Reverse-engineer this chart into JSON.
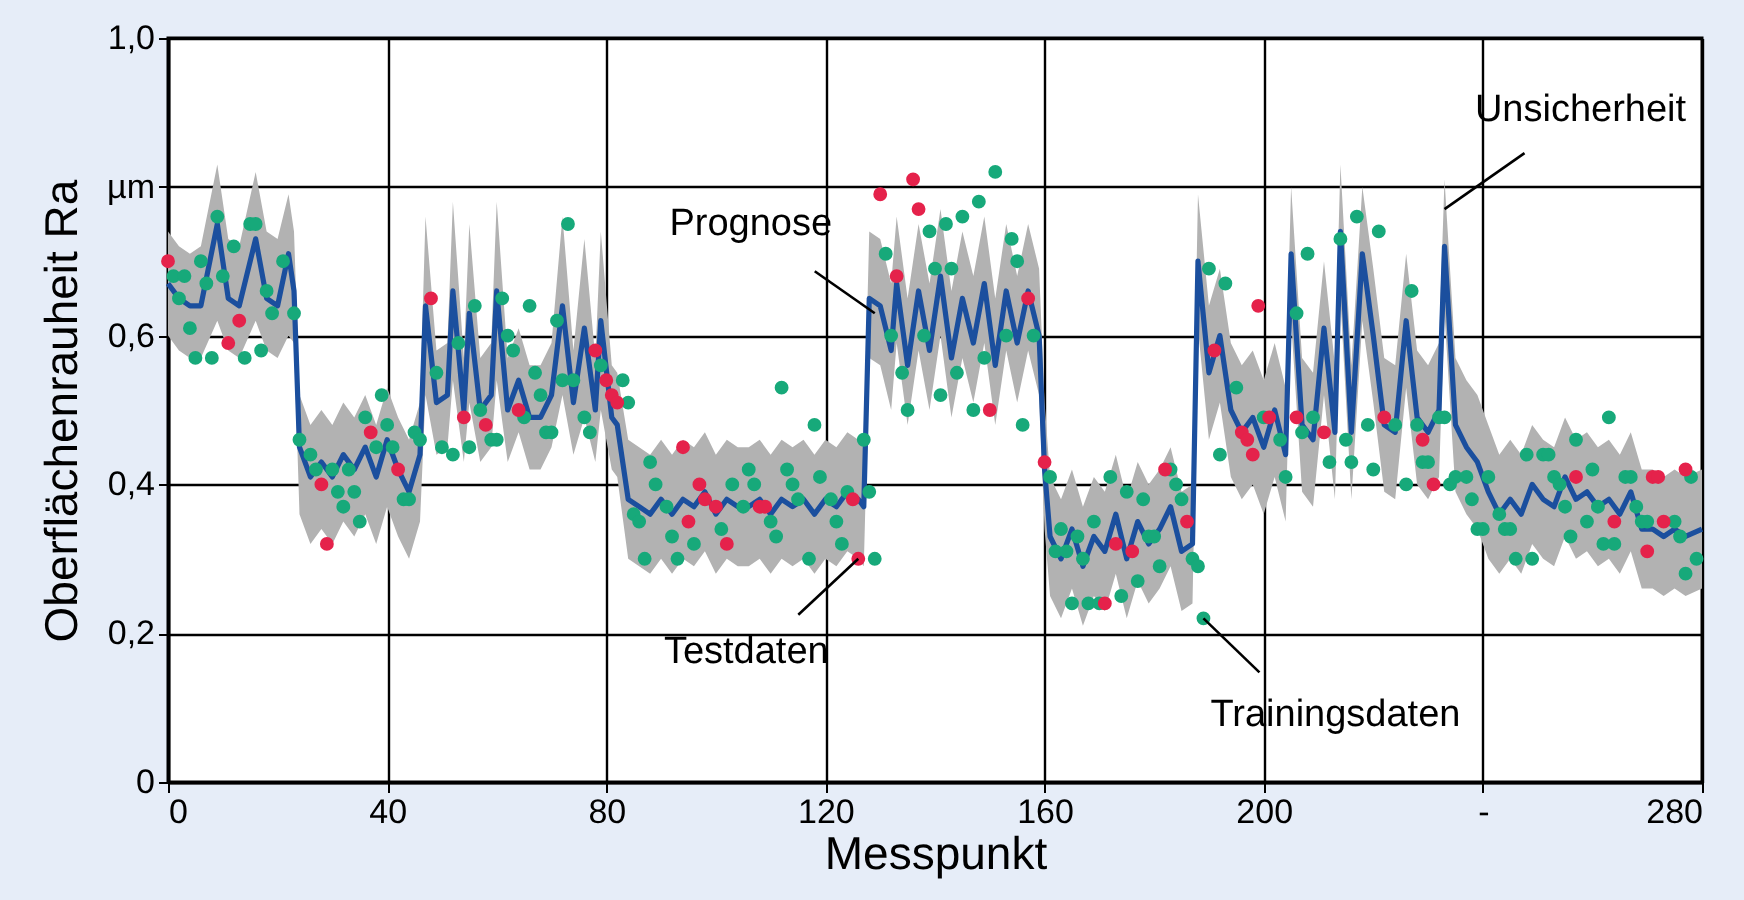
{
  "chart_data": {
    "type": "line",
    "xlabel": "Messpunkt",
    "ylabel": "Oberflächenrauheit Ra",
    "xlim": [
      0,
      280
    ],
    "ylim": [
      0,
      1
    ],
    "xticks": [
      0,
      40,
      80,
      120,
      160,
      200,
      {
        "value": 240,
        "label": "-"
      },
      280
    ],
    "yticks": [
      0,
      {
        "value": 0.2,
        "label": "0,2"
      },
      {
        "value": 0.4,
        "label": "0,4"
      },
      {
        "value": 0.6,
        "label": "0,6"
      },
      {
        "value": 0.8,
        "label": "µm"
      },
      {
        "value": 1,
        "label": "1,0"
      }
    ],
    "grid": true,
    "line_style": "solid",
    "series": [
      {
        "color": "#1b4f9e",
        "x": [
          0,
          2,
          4,
          6,
          9,
          11,
          13,
          16,
          18,
          20,
          22,
          23,
          24,
          26,
          28,
          30,
          32,
          34,
          36,
          38,
          40,
          42,
          44,
          46,
          47,
          49,
          51,
          52,
          54,
          55,
          57,
          59,
          60,
          62,
          64,
          66,
          68,
          70,
          72,
          74,
          76,
          78,
          79,
          81,
          82,
          84,
          86,
          88,
          90,
          92,
          94,
          96,
          98,
          100,
          102,
          104,
          106,
          108,
          110,
          112,
          114,
          116,
          118,
          120,
          122,
          124,
          126,
          127,
          128,
          130,
          132,
          133,
          135,
          137,
          139,
          141,
          143,
          145,
          147,
          149,
          151,
          153,
          155,
          157,
          159,
          160,
          161,
          163,
          165,
          167,
          169,
          171,
          173,
          175,
          177,
          179,
          181,
          183,
          185,
          187,
          188,
          190,
          192,
          194,
          196,
          198,
          200,
          202,
          204,
          205,
          207,
          209,
          211,
          213,
          214,
          216,
          218,
          220,
          222,
          224,
          226,
          228,
          230,
          232,
          233,
          235,
          237,
          239,
          241,
          243,
          245,
          247,
          249,
          251,
          253,
          255,
          257,
          259,
          261,
          263,
          265,
          267,
          269,
          271,
          273,
          275,
          277,
          280
        ],
        "values": [
          0.67,
          0.65,
          0.64,
          0.64,
          0.75,
          0.65,
          0.64,
          0.73,
          0.65,
          0.64,
          0.71,
          0.66,
          0.45,
          0.41,
          0.43,
          0.41,
          0.44,
          0.42,
          0.45,
          0.41,
          0.46,
          0.42,
          0.39,
          0.44,
          0.64,
          0.51,
          0.52,
          0.66,
          0.5,
          0.63,
          0.5,
          0.52,
          0.66,
          0.5,
          0.54,
          0.49,
          0.49,
          0.52,
          0.64,
          0.51,
          0.61,
          0.5,
          0.62,
          0.49,
          0.48,
          0.38,
          0.37,
          0.36,
          0.38,
          0.36,
          0.38,
          0.37,
          0.39,
          0.36,
          0.38,
          0.37,
          0.37,
          0.38,
          0.36,
          0.38,
          0.37,
          0.38,
          0.36,
          0.38,
          0.37,
          0.39,
          0.38,
          0.37,
          0.65,
          0.64,
          0.58,
          0.67,
          0.56,
          0.66,
          0.58,
          0.68,
          0.57,
          0.65,
          0.59,
          0.67,
          0.56,
          0.66,
          0.59,
          0.66,
          0.6,
          0.42,
          0.33,
          0.3,
          0.34,
          0.29,
          0.33,
          0.31,
          0.36,
          0.3,
          0.35,
          0.32,
          0.34,
          0.37,
          0.31,
          0.32,
          0.7,
          0.55,
          0.6,
          0.5,
          0.47,
          0.49,
          0.45,
          0.5,
          0.44,
          0.71,
          0.48,
          0.46,
          0.61,
          0.47,
          0.74,
          0.47,
          0.71,
          0.6,
          0.48,
          0.47,
          0.62,
          0.49,
          0.47,
          0.5,
          0.72,
          0.48,
          0.45,
          0.43,
          0.39,
          0.36,
          0.38,
          0.36,
          0.4,
          0.38,
          0.37,
          0.41,
          0.38,
          0.39,
          0.37,
          0.38,
          0.36,
          0.39,
          0.34,
          0.34,
          0.33,
          0.34,
          0.33,
          0.34
        ],
        "lower": [
          0.6,
          0.58,
          0.57,
          0.57,
          0.62,
          0.58,
          0.57,
          0.62,
          0.58,
          0.57,
          0.6,
          0.59,
          0.36,
          0.32,
          0.34,
          0.32,
          0.35,
          0.33,
          0.36,
          0.32,
          0.37,
          0.33,
          0.3,
          0.35,
          0.52,
          0.44,
          0.45,
          0.54,
          0.43,
          0.51,
          0.43,
          0.45,
          0.54,
          0.43,
          0.47,
          0.42,
          0.42,
          0.45,
          0.52,
          0.44,
          0.49,
          0.43,
          0.5,
          0.42,
          0.41,
          0.3,
          0.29,
          0.28,
          0.3,
          0.28,
          0.3,
          0.29,
          0.31,
          0.28,
          0.3,
          0.29,
          0.29,
          0.3,
          0.28,
          0.3,
          0.29,
          0.3,
          0.28,
          0.3,
          0.29,
          0.31,
          0.3,
          0.29,
          0.57,
          0.56,
          0.5,
          0.59,
          0.48,
          0.58,
          0.5,
          0.6,
          0.49,
          0.57,
          0.51,
          0.59,
          0.48,
          0.58,
          0.51,
          0.58,
          0.52,
          0.34,
          0.25,
          0.22,
          0.26,
          0.21,
          0.25,
          0.23,
          0.28,
          0.22,
          0.27,
          0.24,
          0.26,
          0.29,
          0.23,
          0.24,
          0.61,
          0.46,
          0.51,
          0.41,
          0.38,
          0.4,
          0.36,
          0.41,
          0.35,
          0.62,
          0.39,
          0.37,
          0.52,
          0.38,
          0.65,
          0.38,
          0.62,
          0.51,
          0.39,
          0.38,
          0.53,
          0.4,
          0.38,
          0.41,
          0.63,
          0.39,
          0.36,
          0.34,
          0.3,
          0.28,
          0.3,
          0.28,
          0.32,
          0.3,
          0.29,
          0.33,
          0.3,
          0.31,
          0.29,
          0.3,
          0.28,
          0.31,
          0.26,
          0.26,
          0.25,
          0.26,
          0.25,
          0.26
        ],
        "upper": [
          0.74,
          0.72,
          0.71,
          0.72,
          0.83,
          0.73,
          0.72,
          0.82,
          0.74,
          0.73,
          0.79,
          0.74,
          0.52,
          0.48,
          0.5,
          0.48,
          0.51,
          0.49,
          0.52,
          0.48,
          0.53,
          0.49,
          0.46,
          0.51,
          0.76,
          0.58,
          0.59,
          0.78,
          0.57,
          0.75,
          0.57,
          0.59,
          0.78,
          0.57,
          0.61,
          0.56,
          0.56,
          0.59,
          0.76,
          0.58,
          0.73,
          0.57,
          0.74,
          0.56,
          0.55,
          0.46,
          0.45,
          0.44,
          0.46,
          0.44,
          0.46,
          0.45,
          0.47,
          0.44,
          0.46,
          0.45,
          0.45,
          0.46,
          0.44,
          0.46,
          0.45,
          0.46,
          0.44,
          0.46,
          0.45,
          0.47,
          0.46,
          0.45,
          0.74,
          0.73,
          0.67,
          0.76,
          0.65,
          0.75,
          0.67,
          0.77,
          0.66,
          0.74,
          0.68,
          0.76,
          0.65,
          0.75,
          0.68,
          0.75,
          0.69,
          0.51,
          0.41,
          0.38,
          0.42,
          0.37,
          0.41,
          0.39,
          0.44,
          0.38,
          0.43,
          0.4,
          0.42,
          0.45,
          0.39,
          0.4,
          0.79,
          0.64,
          0.69,
          0.59,
          0.56,
          0.58,
          0.54,
          0.59,
          0.53,
          0.8,
          0.57,
          0.55,
          0.7,
          0.56,
          0.83,
          0.56,
          0.8,
          0.69,
          0.57,
          0.56,
          0.71,
          0.58,
          0.56,
          0.59,
          0.81,
          0.57,
          0.54,
          0.52,
          0.48,
          0.44,
          0.46,
          0.44,
          0.48,
          0.46,
          0.45,
          0.49,
          0.46,
          0.47,
          0.45,
          0.46,
          0.44,
          0.47,
          0.42,
          0.42,
          0.41,
          0.42,
          0.41,
          0.42
        ]
      },
      {
        "type": "scatter",
        "marker": "circle",
        "color": "#17a97a",
        "x": [
          9,
          15,
          16,
          12,
          6,
          1,
          3,
          10,
          21,
          7,
          2,
          18,
          4,
          5,
          8,
          14,
          17,
          19,
          23,
          24,
          26,
          27,
          30,
          31,
          32,
          34,
          35,
          33,
          36,
          39,
          40,
          38,
          41,
          43,
          44,
          45,
          46,
          49,
          53,
          56,
          55,
          50,
          52,
          57,
          59,
          60,
          61,
          62,
          63,
          66,
          65,
          67,
          68,
          69,
          70,
          71,
          73,
          72,
          74,
          76,
          77,
          79,
          83,
          84,
          85,
          86,
          88,
          89,
          87,
          91,
          92,
          93,
          96,
          101,
          103,
          105,
          106,
          107,
          110,
          111,
          112,
          113,
          114,
          115,
          117,
          118,
          119,
          121,
          122,
          123,
          124,
          127,
          128,
          129,
          131,
          132,
          134,
          135,
          138,
          139,
          140,
          141,
          142,
          143,
          144,
          145,
          147,
          148,
          149,
          151,
          153,
          154,
          155,
          156,
          158,
          161,
          162,
          163,
          164,
          165,
          166,
          167,
          168,
          169,
          170,
          172,
          174,
          175,
          177,
          178,
          179,
          180,
          181,
          183,
          184,
          185,
          187,
          188,
          189,
          190,
          193,
          195,
          192,
          200,
          203,
          204,
          206,
          208,
          207,
          209,
          212,
          214,
          215,
          216,
          217,
          219,
          220,
          221,
          224,
          226,
          227,
          228,
          229,
          230,
          232,
          233,
          234,
          235,
          237,
          238,
          239,
          240,
          241,
          243,
          244,
          245,
          246,
          248,
          249,
          251,
          252,
          253,
          254,
          255,
          256,
          257,
          259,
          260,
          261,
          262,
          263,
          264,
          266,
          267,
          268,
          269,
          270,
          275,
          276,
          277,
          278,
          279
        ],
        "values": [
          0.76,
          0.75,
          0.75,
          0.72,
          0.7,
          0.68,
          0.68,
          0.68,
          0.7,
          0.67,
          0.65,
          0.66,
          0.61,
          0.57,
          0.57,
          0.57,
          0.58,
          0.63,
          0.63,
          0.46,
          0.44,
          0.42,
          0.42,
          0.39,
          0.37,
          0.39,
          0.35,
          0.42,
          0.49,
          0.52,
          0.48,
          0.45,
          0.45,
          0.38,
          0.38,
          0.47,
          0.46,
          0.55,
          0.59,
          0.64,
          0.45,
          0.45,
          0.44,
          0.5,
          0.46,
          0.46,
          0.65,
          0.6,
          0.58,
          0.64,
          0.49,
          0.55,
          0.52,
          0.47,
          0.47,
          0.62,
          0.75,
          0.54,
          0.54,
          0.49,
          0.47,
          0.56,
          0.54,
          0.51,
          0.36,
          0.35,
          0.43,
          0.4,
          0.3,
          0.37,
          0.33,
          0.3,
          0.32,
          0.34,
          0.4,
          0.37,
          0.42,
          0.4,
          0.35,
          0.33,
          0.53,
          0.42,
          0.4,
          0.38,
          0.3,
          0.48,
          0.41,
          0.38,
          0.35,
          0.32,
          0.39,
          0.46,
          0.39,
          0.3,
          0.71,
          0.6,
          0.55,
          0.5,
          0.6,
          0.74,
          0.69,
          0.52,
          0.75,
          0.69,
          0.55,
          0.76,
          0.5,
          0.78,
          0.57,
          0.82,
          0.6,
          0.73,
          0.7,
          0.48,
          0.6,
          0.41,
          0.31,
          0.34,
          0.31,
          0.24,
          0.33,
          0.3,
          0.24,
          0.35,
          0.24,
          0.41,
          0.25,
          0.39,
          0.27,
          0.38,
          0.33,
          0.33,
          0.29,
          0.42,
          0.4,
          0.38,
          0.3,
          0.29,
          0.22,
          0.69,
          0.67,
          0.53,
          0.44,
          0.49,
          0.46,
          0.41,
          0.63,
          0.71,
          0.47,
          0.49,
          0.43,
          0.73,
          0.46,
          0.43,
          0.76,
          0.48,
          0.42,
          0.74,
          0.48,
          0.4,
          0.66,
          0.48,
          0.43,
          0.43,
          0.49,
          0.49,
          0.4,
          0.41,
          0.41,
          0.38,
          0.34,
          0.34,
          0.41,
          0.36,
          0.34,
          0.34,
          0.3,
          0.44,
          0.3,
          0.44,
          0.44,
          0.41,
          0.4,
          0.37,
          0.33,
          0.46,
          0.35,
          0.42,
          0.37,
          0.32,
          0.49,
          0.32,
          0.41,
          0.41,
          0.37,
          0.35,
          0.35,
          0.35,
          0.33,
          0.28,
          0.41,
          0.3
        ]
      },
      {
        "type": "scatter",
        "marker": "circle",
        "color": "#e5224b",
        "x": [
          0,
          13,
          11,
          28,
          29,
          37,
          42,
          48,
          54,
          58,
          64,
          78,
          80,
          81,
          82,
          94,
          97,
          95,
          98,
          100,
          102,
          108,
          109,
          125,
          126,
          130,
          133,
          136,
          137,
          150,
          157,
          160,
          171,
          173,
          176,
          182,
          186,
          191,
          196,
          197,
          198,
          199,
          201,
          206,
          211,
          222,
          229,
          231,
          257,
          264,
          270,
          271,
          272,
          273,
          277
        ],
        "values": [
          0.7,
          0.62,
          0.59,
          0.4,
          0.32,
          0.47,
          0.42,
          0.65,
          0.49,
          0.48,
          0.5,
          0.58,
          0.54,
          0.52,
          0.51,
          0.45,
          0.4,
          0.35,
          0.38,
          0.37,
          0.32,
          0.37,
          0.37,
          0.38,
          0.3,
          0.79,
          0.68,
          0.81,
          0.77,
          0.5,
          0.65,
          0.43,
          0.24,
          0.32,
          0.31,
          0.42,
          0.35,
          0.58,
          0.47,
          0.46,
          0.44,
          0.64,
          0.49,
          0.49,
          0.47,
          0.49,
          0.46,
          0.4,
          0.41,
          0.35,
          0.31,
          0.41,
          0.41,
          0.35,
          0.42
        ]
      }
    ],
    "annotations": [
      {
        "text": "Prognose",
        "x": 129,
        "y": 0.63
      },
      {
        "text": "Testdaten",
        "x": 126,
        "y": 0.3
      },
      {
        "text": "Trainingsdaten",
        "x": 189,
        "y": 0.22
      },
      {
        "text": "Unsicherheit",
        "x": 233,
        "y": 0.77
      }
    ]
  }
}
